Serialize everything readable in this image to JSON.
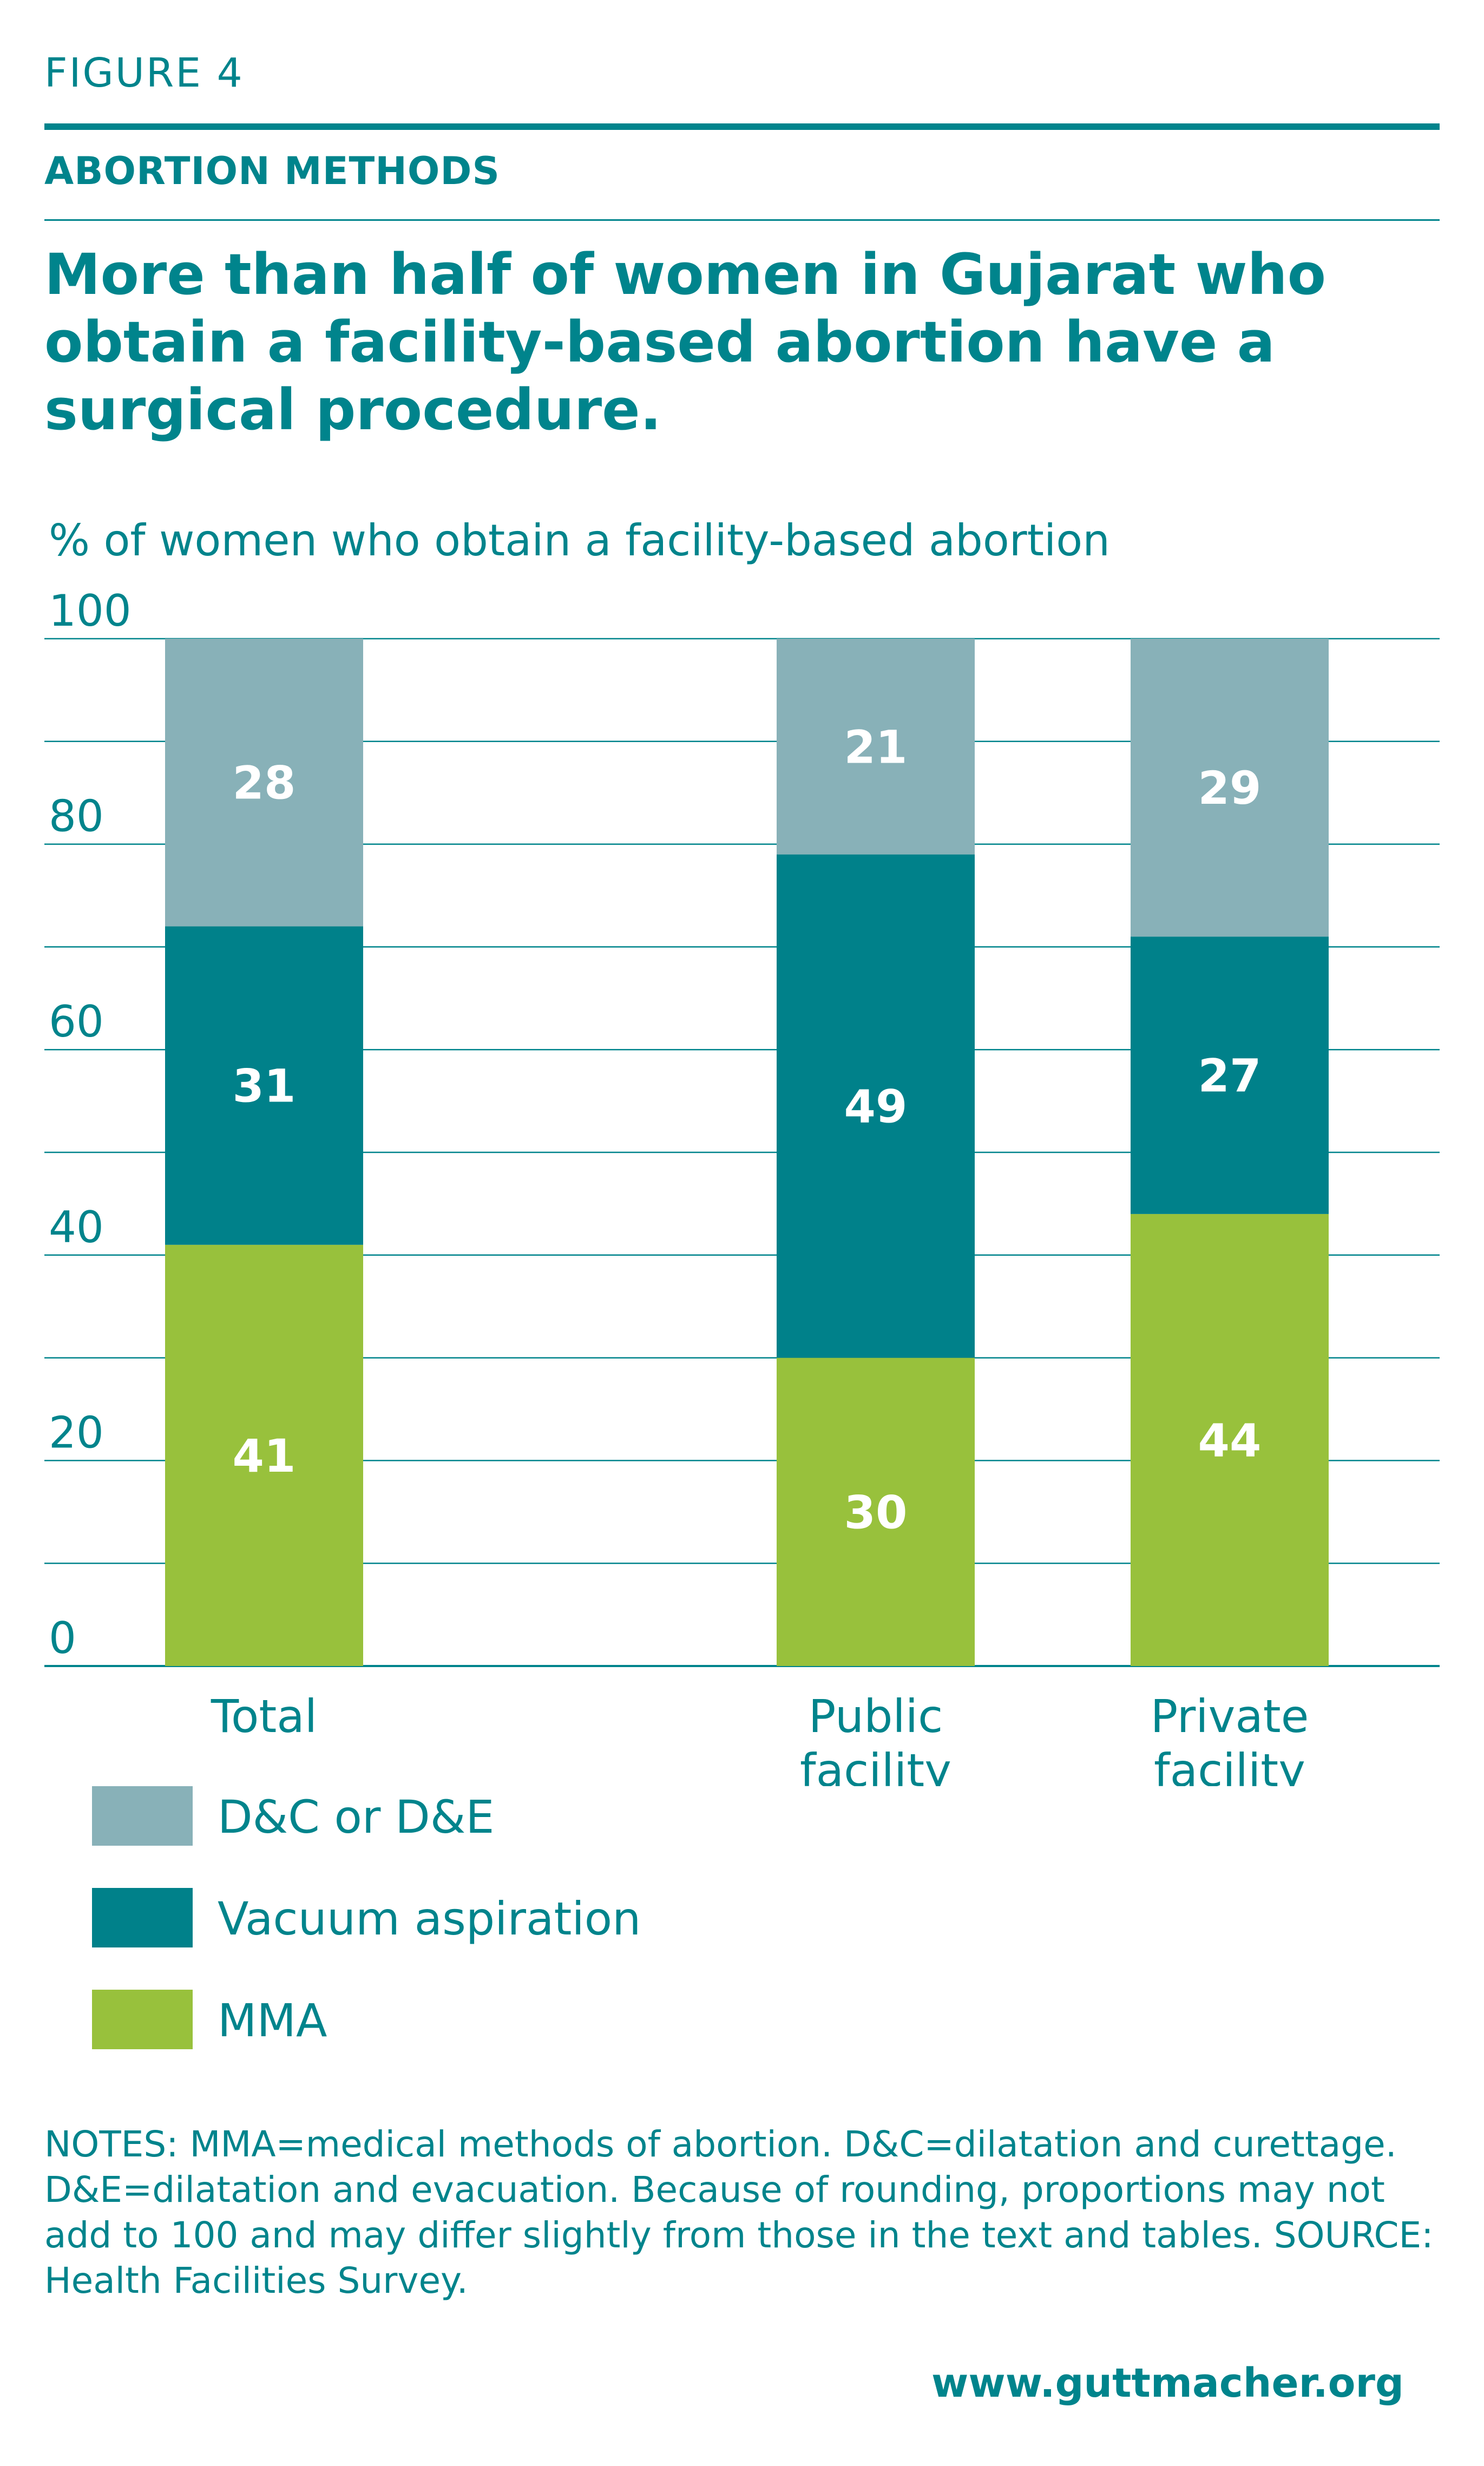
{
  "header": {
    "figure_label": "FIGURE 4",
    "section_title": "ABORTION METHODS",
    "headline": "More than half of women in Gujarat who obtain a facility-based abortion have a surgical procedure."
  },
  "colors": {
    "text": "#00848c",
    "dc_de": "#88b1b8",
    "vacuum": "#00818a",
    "mma": "#98c13c",
    "grid": "#00848c"
  },
  "chart_data": {
    "type": "bar",
    "stacked": true,
    "ylabel": "% of women who obtain a facility-based abortion",
    "ylim": [
      0,
      100
    ],
    "yticks": [
      0,
      20,
      40,
      60,
      80,
      100
    ],
    "grid": true,
    "categories": [
      "Total",
      "Public facility",
      "Private facility"
    ],
    "category_lines": [
      [
        "Total"
      ],
      [
        "Public",
        "facility"
      ],
      [
        "Private",
        "facility"
      ]
    ],
    "series": [
      {
        "name": "MMA",
        "color": "#98c13c",
        "values": [
          41,
          30,
          44
        ]
      },
      {
        "name": "Vacuum aspiration",
        "color": "#00818a",
        "values": [
          31,
          49,
          27
        ]
      },
      {
        "name": "D&C or D&E",
        "color": "#88b1b8",
        "values": [
          28,
          21,
          29
        ]
      }
    ]
  },
  "legend": {
    "items": [
      {
        "label": "D&C or D&E",
        "color": "#88b1b8"
      },
      {
        "label": "Vacuum aspiration",
        "color": "#00818a"
      },
      {
        "label": "MMA",
        "color": "#98c13c"
      }
    ]
  },
  "notes": "NOTES: MMA=medical methods of abortion. D&C=dilatation and curettage. D&E=dilatation and evacuation. Because of rounding, proportions may not add to 100 and may differ slightly from those in the text and tables. SOURCE: Health Facilities Survey.",
  "footer": {
    "url": "www.guttmacher.org"
  }
}
